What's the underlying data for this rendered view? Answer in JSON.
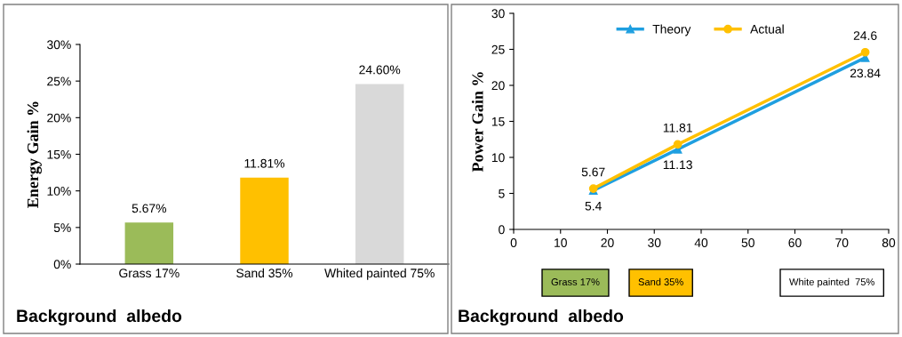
{
  "chart_data": [
    {
      "type": "bar",
      "ylabel": "Energy Gain %",
      "xlabel": "Background  albedo",
      "categories": [
        "Grass 17%",
        "Sand 35%",
        "Whited painted 75%"
      ],
      "values": [
        5.67,
        11.81,
        24.6
      ],
      "colors": [
        "#9bbb59",
        "#ffc000",
        "#d9d9d9"
      ],
      "value_labels": [
        "5.67%",
        "11.81%",
        "24.60%"
      ],
      "ylim": [
        0,
        30
      ],
      "yticks": [
        {
          "value": 0,
          "label": "0%"
        },
        {
          "value": 5,
          "label": "5%"
        },
        {
          "value": 10,
          "label": "10%"
        },
        {
          "value": 15,
          "label": "15%"
        },
        {
          "value": 20,
          "label": "20%"
        },
        {
          "value": 25,
          "label": "25%"
        },
        {
          "value": 30,
          "label": "30%"
        }
      ],
      "grid": false,
      "legend": false
    },
    {
      "type": "line",
      "ylabel": "Power Gain %",
      "xlabel": "Background  albedo",
      "x": [
        17,
        35,
        75
      ],
      "series": [
        {
          "name": "Theory",
          "color": "#1f9fe0",
          "marker": "triangle",
          "values": [
            5.4,
            11.13,
            23.84
          ]
        },
        {
          "name": "Actual",
          "color": "#ffc000",
          "marker": "circle",
          "values": [
            5.67,
            11.81,
            24.6
          ]
        }
      ],
      "xlim": [
        0,
        80
      ],
      "xticks": [
        0,
        10,
        20,
        30,
        40,
        50,
        60,
        70,
        80
      ],
      "ylim": [
        0,
        30
      ],
      "yticks": [
        0,
        5,
        10,
        15,
        20,
        25,
        30
      ],
      "data_labels": true,
      "grid": false,
      "legend": "top",
      "annotations": [
        "Grass 17%",
        "Sand 35%",
        "White painted  75%"
      ]
    }
  ]
}
